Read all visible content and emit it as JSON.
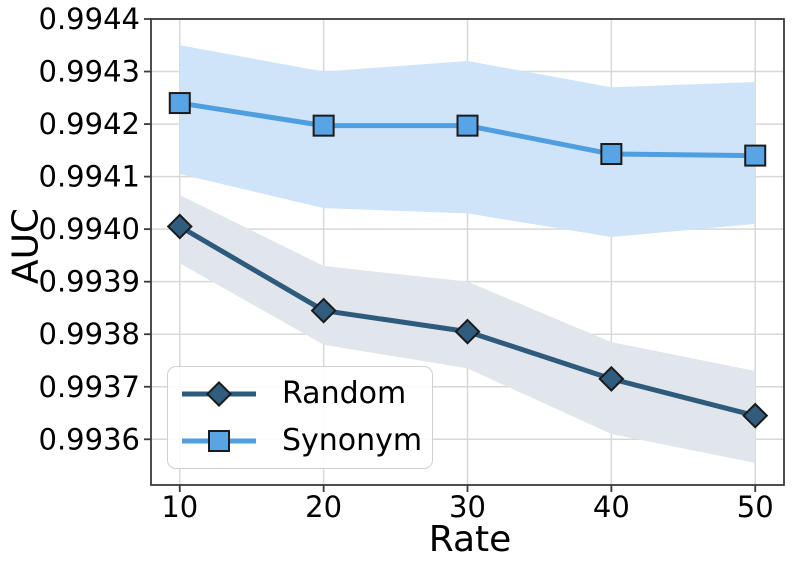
{
  "chart_data": {
    "type": "line",
    "title": "",
    "xlabel": "Rate",
    "ylabel": "AUC",
    "x": [
      10,
      20,
      30,
      40,
      50
    ],
    "x_tick_labels": [
      "10",
      "20",
      "30",
      "40",
      "50"
    ],
    "y_ticks": [
      0.9936,
      0.9937,
      0.9938,
      0.9939,
      0.994,
      0.9941,
      0.9942,
      0.9943,
      0.9944
    ],
    "y_tick_labels": [
      "0.9936",
      "0.9937",
      "0.9938",
      "0.9939",
      "0.9940",
      "0.9941",
      "0.9942",
      "0.9943",
      "0.9944"
    ],
    "xlim": [
      8,
      52
    ],
    "ylim": [
      0.993513,
      0.9944
    ],
    "grid": true,
    "legend_position": "lower left",
    "colors": {
      "grid": "#d8d8d8",
      "spine": "#3b3b3b",
      "text": "#000000",
      "marker_edge": "#1b1b1b"
    },
    "series": [
      {
        "name": "Random",
        "marker": "diamond",
        "line_color": "#2e5b7c",
        "marker_color": "#305c7e",
        "band_color": "#e1e5ec",
        "values": [
          0.994005,
          0.993845,
          0.993805,
          0.993715,
          0.993645
        ],
        "band_lower": [
          0.993935,
          0.99378,
          0.993735,
          0.99361,
          0.993555
        ],
        "band_upper": [
          0.994065,
          0.99393,
          0.9939,
          0.993785,
          0.99373
        ]
      },
      {
        "name": "Synonym",
        "marker": "square",
        "line_color": "#4e9ee0",
        "marker_color": "#58a4e4",
        "band_color": "#cfe4f8",
        "values": [
          0.99424,
          0.994197,
          0.994197,
          0.994143,
          0.99414
        ],
        "band_lower": [
          0.994105,
          0.99404,
          0.99403,
          0.993985,
          0.99401
        ],
        "band_upper": [
          0.99435,
          0.9943,
          0.99432,
          0.99427,
          0.99428
        ]
      }
    ]
  }
}
